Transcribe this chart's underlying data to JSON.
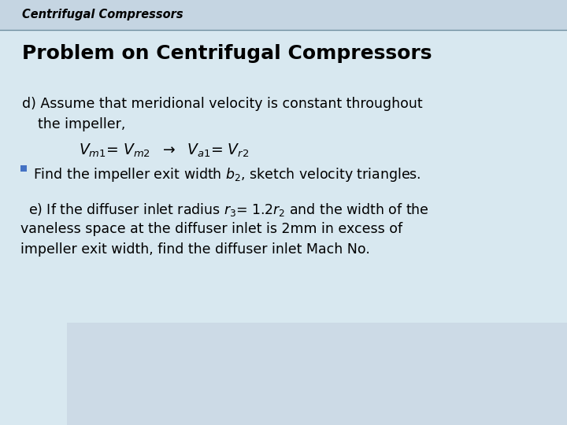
{
  "header_text": "Centrifugal Compressors",
  "title_text": "Problem on Centrifugal Compressors",
  "header_bg": "#c5d5e2",
  "main_bg": "#d8e8f0",
  "lower_bg": "#ccdae6",
  "header_font_size": 10.5,
  "title_font_size": 18,
  "body_font_size": 12.5,
  "line1": "d) Assume that meridional velocity is constant throughout",
  "line2": "    the impeller,",
  "line3_math": "$V_{m1}= V_{m2}$  →  $V_{a1}= V_{r2}$",
  "bullet_text_math": "Find the impeller exit width $b_2$, sketch velocity triangles.",
  "eline1_math": "  e) If the diffuser inlet radius $r_3$= 1.2$r_2$ and the width of the",
  "eline2": "vaneless space at the diffuser inlet is 2mm in excess of",
  "eline3": "impeller exit width, find the diffuser inlet Mach No.",
  "bullet_color": "#4472c4",
  "text_color": "#000000",
  "header_text_color": "#000000",
  "line_color": "#7090a0"
}
